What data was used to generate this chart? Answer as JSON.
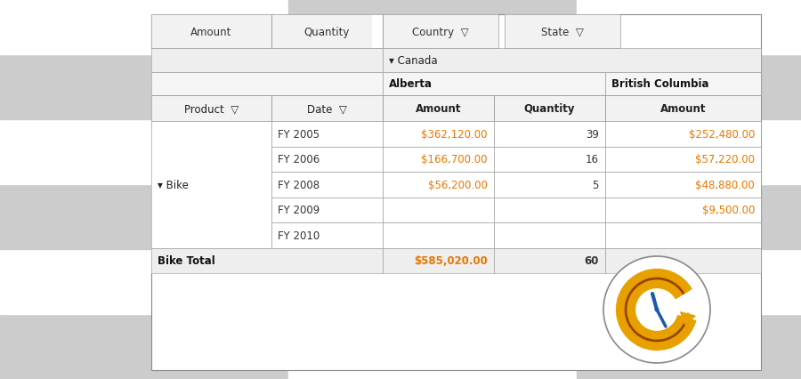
{
  "bg_color": "#ffffff",
  "checker_color": "#cccccc",
  "orange_color": "#E8A000",
  "blue_color": "#1E5799",
  "orange_text": "#E87800",
  "dark_orange": "#994400",
  "line_color": "#aaaaaa",
  "border_color": "#555555",
  "header_bg": "#f0f0f0",
  "cell_bg": "#ffffff",
  "text_color": "#333333",
  "rows": [
    [
      "FY 2005",
      "$362,120.00",
      "39",
      "$252,480.00"
    ],
    [
      "FY 2006",
      "$166,700.00",
      "16",
      "$57,220.00"
    ],
    [
      "FY 2008",
      "$56,200.00",
      "5",
      "$48,880.00"
    ],
    [
      "FY 2009",
      "",
      "",
      "$9,500.00"
    ],
    [
      "FY 2010",
      "",
      "",
      ""
    ]
  ],
  "bike_label": "▾ Bike",
  "canada_label": "▾ Canada",
  "total_label": "Bike Total",
  "total_amount": "$585,020.00",
  "total_qty": "60"
}
